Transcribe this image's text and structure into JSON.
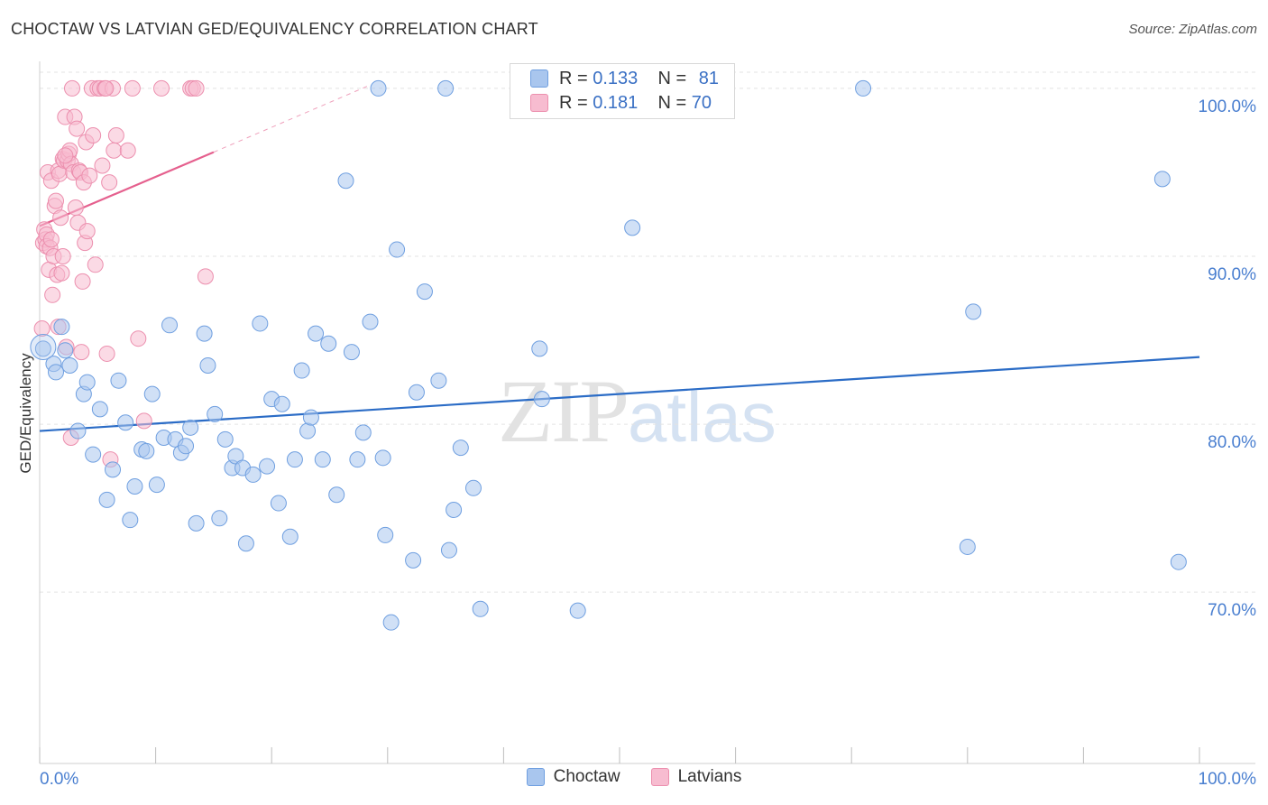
{
  "title": "CHOCTAW VS LATVIAN GED/EQUIVALENCY CORRELATION CHART",
  "source": "Source: ZipAtlas.com",
  "watermark": {
    "zip": "ZIP",
    "atlas": "atlas"
  },
  "colors": {
    "choctaw": "#6f9fe0",
    "choctaw_fill": "#a9c6ee",
    "choctaw_line": "#2b6cc6",
    "latvians": "#ec8fae",
    "latvians_fill": "#f7bcd0",
    "latvians_line": "#e5608e",
    "axis_text": "#4a7fd0"
  },
  "legend_top": {
    "choctaw": {
      "r_label": "R =",
      "r_value": "0.133",
      "n_label": "N =",
      "n_value": "81"
    },
    "latvians": {
      "r_label": "R =",
      "r_value": "0.181",
      "n_label": "N =",
      "n_value": "70"
    }
  },
  "chart_data": {
    "type": "scatter",
    "title": "CHOCTAW VS LATVIAN GED/EQUIVALENCY CORRELATION CHART",
    "xlabel": "",
    "ylabel": "GED/Equivalency",
    "xlim": [
      0,
      100
    ],
    "ylim": [
      59.8,
      101.5
    ],
    "x_tick_labels": [
      "0.0%",
      "100.0%"
    ],
    "y_ticks": [
      {
        "value": 100,
        "label": "100.0%"
      },
      {
        "value": 90,
        "label": "90.0%"
      },
      {
        "value": 80,
        "label": "80.0%"
      },
      {
        "value": 70,
        "label": "70.0%"
      }
    ],
    "grid": true,
    "series": [
      {
        "name": "Choctaw",
        "trend": {
          "x0": 0,
          "y0": 79.6,
          "x1": 100,
          "y1": 84.0
        },
        "points": [
          [
            0.3,
            84.5
          ],
          [
            1.2,
            83.6
          ],
          [
            1.4,
            83.1
          ],
          [
            1.9,
            85.8
          ],
          [
            2.2,
            84.4
          ],
          [
            2.6,
            83.5
          ],
          [
            3.3,
            79.6
          ],
          [
            3.8,
            81.8
          ],
          [
            4.1,
            82.5
          ],
          [
            4.6,
            78.2
          ],
          [
            5.2,
            80.9
          ],
          [
            5.8,
            75.5
          ],
          [
            6.3,
            77.3
          ],
          [
            6.8,
            82.6
          ],
          [
            7.4,
            80.1
          ],
          [
            7.8,
            74.3
          ],
          [
            8.2,
            76.3
          ],
          [
            8.8,
            78.5
          ],
          [
            9.2,
            78.4
          ],
          [
            9.7,
            81.8
          ],
          [
            10.1,
            76.4
          ],
          [
            10.7,
            79.2
          ],
          [
            11.2,
            85.9
          ],
          [
            11.7,
            79.1
          ],
          [
            12.2,
            78.3
          ],
          [
            12.6,
            78.7
          ],
          [
            13.0,
            79.8
          ],
          [
            13.5,
            74.1
          ],
          [
            14.2,
            85.4
          ],
          [
            14.5,
            83.5
          ],
          [
            15.1,
            80.6
          ],
          [
            15.5,
            74.4
          ],
          [
            16.0,
            79.1
          ],
          [
            16.6,
            77.4
          ],
          [
            16.9,
            78.1
          ],
          [
            17.5,
            77.4
          ],
          [
            17.8,
            72.9
          ],
          [
            18.4,
            77.0
          ],
          [
            19.0,
            86.0
          ],
          [
            19.6,
            77.5
          ],
          [
            20.0,
            81.5
          ],
          [
            20.6,
            75.3
          ],
          [
            20.9,
            81.2
          ],
          [
            21.6,
            73.3
          ],
          [
            22.0,
            77.9
          ],
          [
            22.6,
            83.2
          ],
          [
            23.1,
            79.6
          ],
          [
            23.4,
            80.4
          ],
          [
            23.8,
            85.4
          ],
          [
            24.4,
            77.9
          ],
          [
            24.9,
            84.8
          ],
          [
            25.6,
            75.8
          ],
          [
            26.4,
            94.5
          ],
          [
            26.9,
            84.3
          ],
          [
            27.4,
            77.9
          ],
          [
            27.9,
            79.5
          ],
          [
            28.5,
            86.1
          ],
          [
            29.2,
            100.0
          ],
          [
            29.6,
            78.0
          ],
          [
            29.8,
            73.4
          ],
          [
            30.3,
            68.2
          ],
          [
            30.8,
            90.4
          ],
          [
            32.2,
            71.9
          ],
          [
            32.5,
            81.9
          ],
          [
            33.2,
            87.9
          ],
          [
            34.4,
            82.6
          ],
          [
            35.0,
            100.0
          ],
          [
            35.3,
            72.5
          ],
          [
            35.7,
            74.9
          ],
          [
            36.3,
            78.6
          ],
          [
            37.4,
            76.2
          ],
          [
            38.0,
            69.0
          ],
          [
            43.1,
            84.5
          ],
          [
            43.3,
            81.5
          ],
          [
            46.4,
            68.9
          ],
          [
            51.1,
            91.7
          ],
          [
            71.0,
            100.0
          ],
          [
            80.0,
            72.7
          ],
          [
            80.5,
            86.7
          ],
          [
            96.8,
            94.6
          ],
          [
            98.2,
            71.8
          ]
        ]
      },
      {
        "name": "Latvians",
        "trend": {
          "x0": 0,
          "y0": 91.8,
          "x1": 15,
          "y1": 96.2
        },
        "trend_extension": {
          "x0": 15,
          "y0": 96.2,
          "x1": 28.5,
          "y1": 100.2
        },
        "points": [
          [
            0.2,
            85.7
          ],
          [
            0.3,
            90.8
          ],
          [
            0.4,
            91.6
          ],
          [
            0.5,
            91.0
          ],
          [
            0.6,
            91.3
          ],
          [
            0.6,
            90.6
          ],
          [
            0.7,
            95.0
          ],
          [
            0.8,
            89.2
          ],
          [
            0.9,
            90.5
          ],
          [
            1.0,
            94.5
          ],
          [
            1.1,
            87.7
          ],
          [
            1.2,
            90.0
          ],
          [
            1.3,
            93.0
          ],
          [
            1.4,
            93.3
          ],
          [
            1.5,
            88.9
          ],
          [
            1.6,
            95.1
          ],
          [
            1.6,
            85.8
          ],
          [
            1.7,
            94.9
          ],
          [
            1.8,
            92.3
          ],
          [
            1.9,
            89.0
          ],
          [
            2.0,
            90.0
          ],
          [
            2.0,
            95.8
          ],
          [
            2.1,
            95.7
          ],
          [
            2.2,
            98.3
          ],
          [
            2.3,
            84.6
          ],
          [
            2.4,
            95.7
          ],
          [
            2.5,
            96.1
          ],
          [
            2.6,
            96.3
          ],
          [
            2.7,
            79.2
          ],
          [
            2.7,
            95.5
          ],
          [
            2.8,
            100.0
          ],
          [
            2.9,
            95.0
          ],
          [
            3.0,
            98.3
          ],
          [
            3.1,
            92.9
          ],
          [
            3.2,
            97.6
          ],
          [
            3.3,
            92.0
          ],
          [
            3.4,
            95.1
          ],
          [
            3.5,
            95.0
          ],
          [
            3.6,
            84.3
          ],
          [
            3.7,
            88.5
          ],
          [
            3.8,
            94.4
          ],
          [
            3.9,
            90.8
          ],
          [
            4.0,
            96.8
          ],
          [
            4.1,
            91.5
          ],
          [
            4.3,
            94.8
          ],
          [
            4.5,
            100.0
          ],
          [
            4.6,
            97.2
          ],
          [
            4.8,
            89.5
          ],
          [
            5.0,
            100.0
          ],
          [
            5.2,
            100.0
          ],
          [
            5.4,
            95.4
          ],
          [
            5.6,
            100.0
          ],
          [
            5.8,
            84.2
          ],
          [
            6.0,
            94.4
          ],
          [
            6.1,
            77.9
          ],
          [
            6.3,
            100.0
          ],
          [
            6.4,
            96.3
          ],
          [
            6.6,
            97.2
          ],
          [
            7.6,
            96.3
          ],
          [
            8.0,
            100.0
          ],
          [
            8.5,
            85.1
          ],
          [
            9.0,
            80.2
          ],
          [
            10.5,
            100.0
          ],
          [
            13.0,
            100.0
          ],
          [
            13.2,
            100.0
          ],
          [
            13.5,
            100.0
          ],
          [
            14.3,
            88.8
          ],
          [
            5.7,
            100.0
          ],
          [
            2.2,
            96.0
          ],
          [
            1.0,
            91.0
          ]
        ]
      }
    ]
  },
  "bottom_legend": [
    "Choctaw",
    "Latvians"
  ]
}
